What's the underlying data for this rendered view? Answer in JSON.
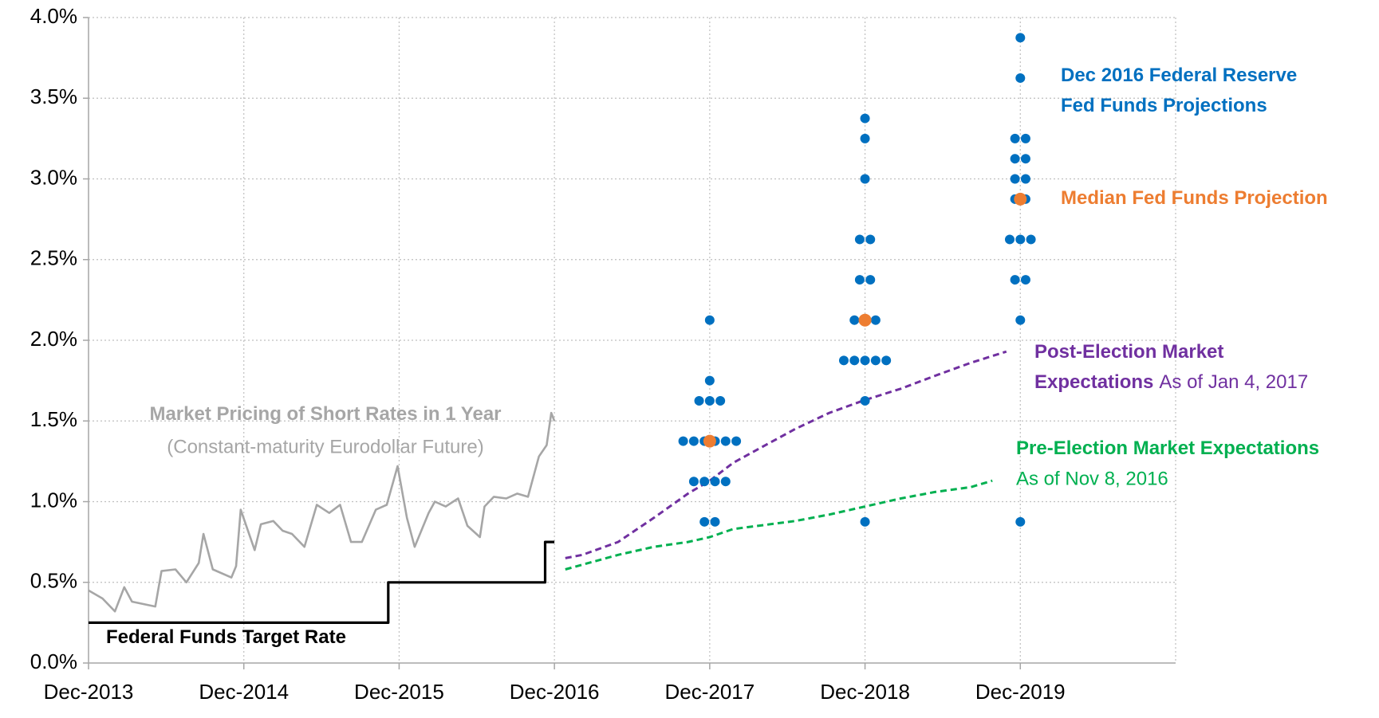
{
  "chart_data": {
    "type": "line",
    "xlim": [
      2013.92,
      2020.92
    ],
    "xticks": [
      {
        "value": 2013.92,
        "label": "Dec-2013"
      },
      {
        "value": 2014.92,
        "label": "Dec-2014"
      },
      {
        "value": 2015.92,
        "label": "Dec-2015"
      },
      {
        "value": 2016.92,
        "label": "Dec-2016"
      },
      {
        "value": 2017.92,
        "label": "Dec-2017"
      },
      {
        "value": 2018.92,
        "label": "Dec-2018"
      },
      {
        "value": 2019.92,
        "label": "Dec-2019"
      }
    ],
    "ylim": [
      0,
      4
    ],
    "yticks": [
      {
        "value": 0,
        "label": "0.0%"
      },
      {
        "value": 0.5,
        "label": "0.5%"
      },
      {
        "value": 1,
        "label": "1.0%"
      },
      {
        "value": 1.5,
        "label": "1.5%"
      },
      {
        "value": 2,
        "label": "2.0%"
      },
      {
        "value": 2.5,
        "label": "2.5%"
      },
      {
        "value": 3,
        "label": "3.0%"
      },
      {
        "value": 3.5,
        "label": "3.5%"
      },
      {
        "value": 4,
        "label": "4.0%"
      }
    ],
    "grid": true,
    "series": [
      {
        "type": "line",
        "label_lines": [
          "Federal Funds Target Rate"
        ],
        "color": "#000000",
        "x": [
          2013.92,
          2015.85,
          2015.85,
          2016.86,
          2016.86,
          2016.92
        ],
        "values": [
          0.25,
          0.25,
          0.5,
          0.5,
          0.75,
          0.75
        ]
      },
      {
        "type": "line",
        "label_lines": [
          "Market Pricing of Short Rates in 1 Year"
        ],
        "note": "(Constant-maturity Eurodollar Future)",
        "color": "#a6a6a6",
        "x": [
          2013.92,
          2014.01,
          2014.09,
          2014.15,
          2014.2,
          2014.35,
          2014.39,
          2014.48,
          2014.55,
          2014.63,
          2014.66,
          2014.72,
          2014.84,
          2014.87,
          2014.9,
          2014.99,
          2015.03,
          2015.11,
          2015.17,
          2015.23,
          2015.31,
          2015.39,
          2015.47,
          2015.54,
          2015.61,
          2015.68,
          2015.77,
          2015.84,
          2015.91,
          2015.97,
          2016.02,
          2016.11,
          2016.15,
          2016.22,
          2016.3,
          2016.36,
          2016.44,
          2016.47,
          2016.53,
          2016.61,
          2016.68,
          2016.75,
          2016.82,
          2016.87,
          2016.9,
          2016.92
        ],
        "values": [
          0.45,
          0.4,
          0.32,
          0.47,
          0.38,
          0.35,
          0.57,
          0.58,
          0.5,
          0.62,
          0.8,
          0.58,
          0.53,
          0.6,
          0.95,
          0.7,
          0.86,
          0.88,
          0.82,
          0.8,
          0.72,
          0.98,
          0.93,
          0.98,
          0.75,
          0.75,
          0.95,
          0.98,
          1.22,
          0.9,
          0.72,
          0.93,
          1.0,
          0.97,
          1.02,
          0.85,
          0.78,
          0.97,
          1.03,
          1.02,
          1.05,
          1.03,
          1.28,
          1.35,
          1.55,
          1.5
        ]
      },
      {
        "type": "line",
        "dashed": true,
        "label_lines": [
          "Post-Election Market",
          "Expectations"
        ],
        "note": "As of Jan 4, 2017",
        "color": "#7030a0",
        "x": [
          2016.99,
          2017.1,
          2017.33,
          2017.56,
          2017.78,
          2017.92,
          2018.07,
          2018.24,
          2018.47,
          2018.69,
          2018.92,
          2019.15,
          2019.37,
          2019.6,
          2019.83
        ],
        "values": [
          0.65,
          0.67,
          0.75,
          0.9,
          1.05,
          1.13,
          1.24,
          1.33,
          1.45,
          1.55,
          1.63,
          1.7,
          1.78,
          1.86,
          1.93
        ]
      },
      {
        "type": "line",
        "dashed": true,
        "label_lines": [
          "Pre-Election Market Expectations"
        ],
        "note": "As of Nov 8, 2016",
        "color": "#00b050",
        "x": [
          2016.99,
          2017.33,
          2017.56,
          2017.78,
          2017.92,
          2018.07,
          2018.47,
          2018.69,
          2018.92,
          2019.15,
          2019.37,
          2019.6,
          2019.74
        ],
        "values": [
          0.58,
          0.67,
          0.72,
          0.75,
          0.78,
          0.83,
          0.88,
          0.92,
          0.97,
          1.02,
          1.06,
          1.09,
          1.13
        ]
      },
      {
        "type": "scatter",
        "label_lines": [
          "Dec 2016 Federal Reserve",
          "Fed Funds Projections"
        ],
        "color": "#0070c0",
        "x": [
          2017.92,
          2017.92,
          2017.92,
          2017.92,
          2017.92,
          2017.92,
          2017.92,
          2017.92,
          2017.92,
          2017.92,
          2017.92,
          2017.92,
          2017.92,
          2017.92,
          2017.92,
          2017.92,
          2017.92,
          2018.92,
          2018.92,
          2018.92,
          2018.92,
          2018.92,
          2018.92,
          2018.92,
          2018.92,
          2018.92,
          2018.92,
          2018.92,
          2018.92,
          2018.92,
          2018.92,
          2018.92,
          2018.92,
          2018.92,
          2019.92,
          2019.92,
          2019.92,
          2019.92,
          2019.92,
          2019.92,
          2019.92,
          2019.92,
          2019.92,
          2019.92,
          2019.92,
          2019.92,
          2019.92,
          2019.92,
          2019.92,
          2019.92,
          2019.92
        ],
        "values": [
          2.125,
          1.75,
          1.625,
          1.625,
          1.625,
          1.375,
          1.375,
          1.375,
          1.375,
          1.375,
          1.375,
          1.125,
          1.125,
          1.125,
          1.125,
          0.875,
          0.875,
          3.375,
          3.25,
          3.0,
          2.625,
          2.625,
          2.375,
          2.375,
          2.125,
          2.125,
          2.125,
          1.875,
          1.875,
          1.875,
          1.875,
          1.875,
          1.625,
          0.875,
          3.875,
          3.625,
          3.25,
          3.25,
          3.125,
          3.125,
          3.0,
          3.0,
          2.875,
          2.875,
          2.625,
          2.625,
          2.625,
          2.375,
          2.375,
          2.125,
          0.875
        ]
      },
      {
        "type": "scatter",
        "label_lines": [
          "Median Fed Funds Projection"
        ],
        "color": "#ed7d31",
        "x": [
          2017.92,
          2018.92,
          2019.92
        ],
        "values": [
          1.375,
          2.125,
          2.875
        ]
      }
    ]
  }
}
